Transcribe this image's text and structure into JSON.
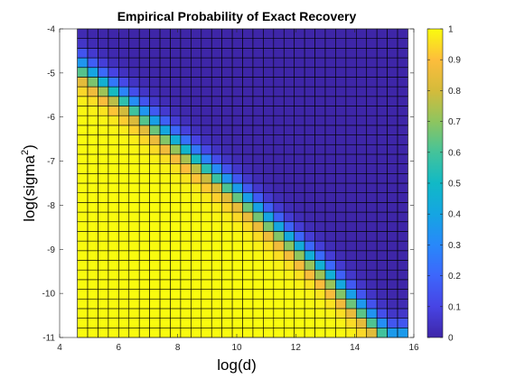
{
  "chart_data": {
    "type": "heatmap",
    "title": "Empirical Probability of Exact Recovery",
    "xlabel": "log(d)",
    "ylabel": "log(sigma",
    "ylabel_superscript": "2",
    "ylabel_close": ")",
    "xlim": [
      4,
      16
    ],
    "ylim": [
      -11,
      -4
    ],
    "xticks": [
      "4",
      "6",
      "8",
      "10",
      "12",
      "14",
      "16"
    ],
    "xtick_values": [
      4,
      6,
      8,
      10,
      12,
      14,
      16
    ],
    "yticks": [
      "-4",
      "-5",
      "-6",
      "-7",
      "-8",
      "-9",
      "-10",
      "-11"
    ],
    "ytick_values": [
      -4,
      -5,
      -6,
      -7,
      -8,
      -9,
      -10,
      -11
    ],
    "colorbar_ticks": [
      "0",
      "0.1",
      "0.2",
      "0.3",
      "0.4",
      "0.5",
      "0.6",
      "0.7",
      "0.8",
      "0.9",
      "1"
    ],
    "colorbar_values": [
      0,
      0.1,
      0.2,
      0.3,
      0.4,
      0.5,
      0.6,
      0.7,
      0.8,
      0.9,
      1
    ],
    "colormap": "parula",
    "grid_cell_edges": "black",
    "x_range": [
      4.6,
      15.8
    ],
    "y_range": [
      -11,
      -4
    ],
    "n_cols": 32,
    "n_rows": 32,
    "transition_boundary": {
      "log_d": [
        4.6,
        6.0,
        8.0,
        10.0,
        12.0,
        13.0,
        14.0,
        15.2
      ],
      "log_sigma2": [
        -4.8,
        -5.5,
        -6.6,
        -7.7,
        -8.9,
        -9.5,
        -10.2,
        -11.0
      ]
    },
    "transition_width": 0.55,
    "values_note_free": true
  }
}
